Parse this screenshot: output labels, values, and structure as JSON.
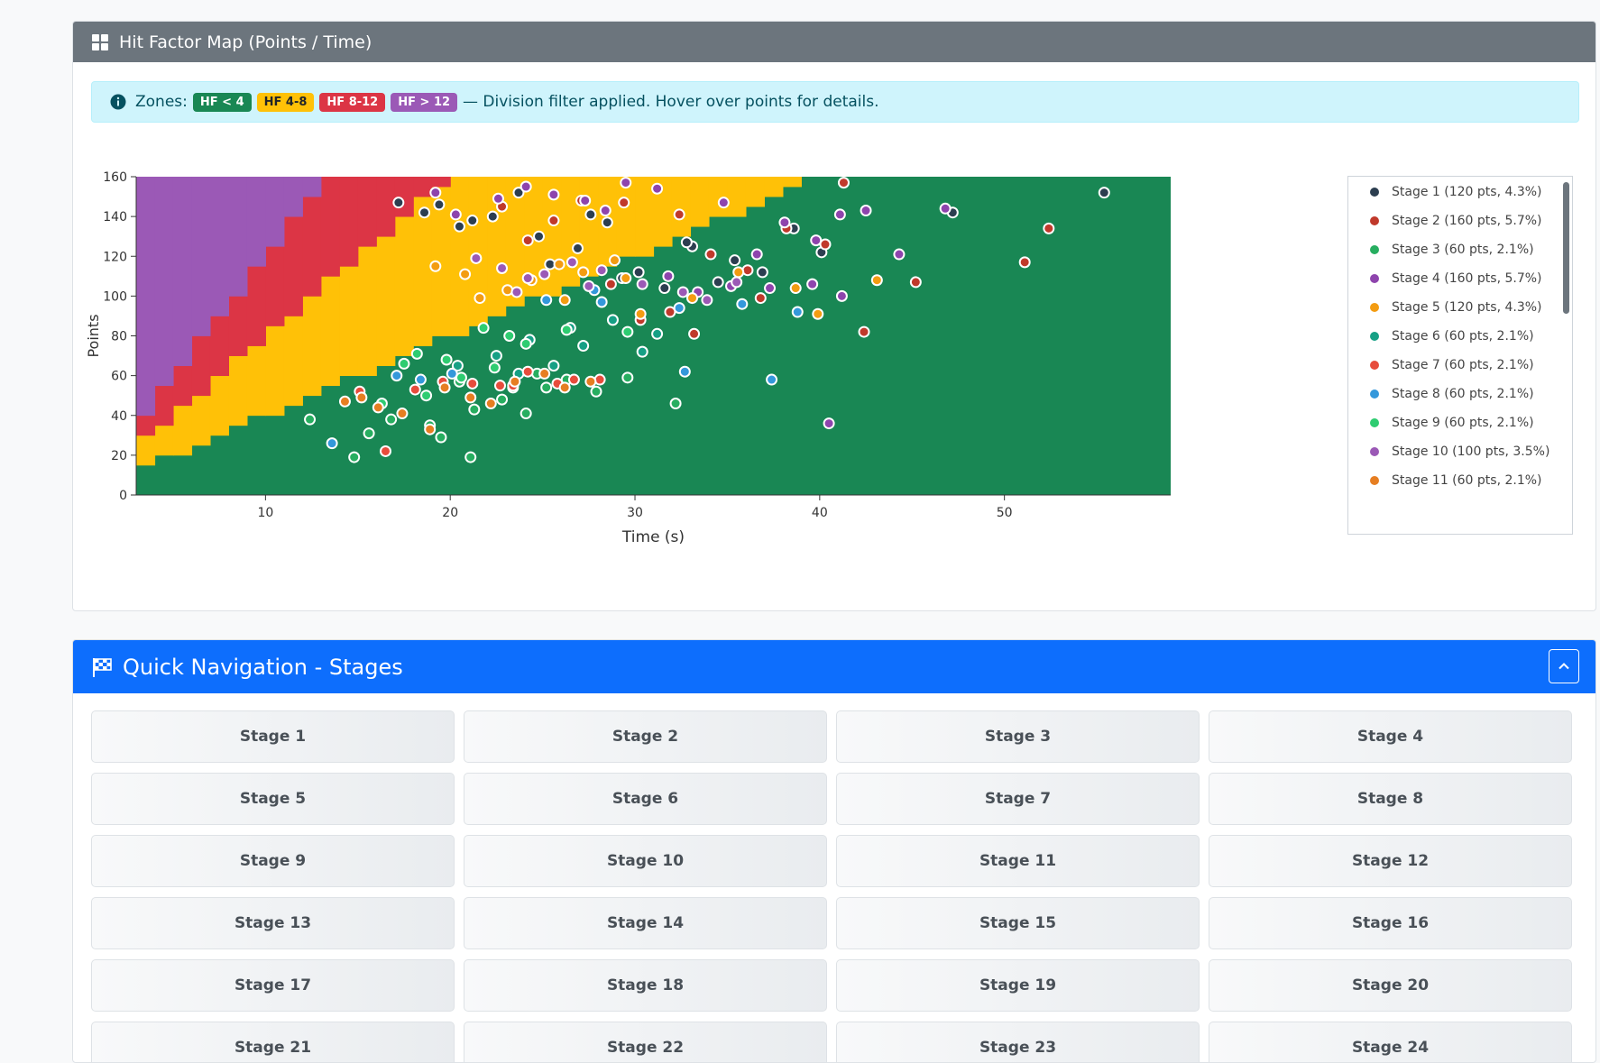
{
  "hf_card": {
    "title": "Hit Factor Map (Points / Time)",
    "alert": {
      "prefix": "Zones:",
      "badges": [
        {
          "label": "HF < 4",
          "bg": "#198754",
          "fg": "#ffffff"
        },
        {
          "label": "HF 4-8",
          "bg": "#ffc107",
          "fg": "#212529"
        },
        {
          "label": "HF 8-12",
          "bg": "#dc3545",
          "fg": "#ffffff"
        },
        {
          "label": "HF > 12",
          "bg": "#9b59b6",
          "fg": "#ffffff"
        }
      ],
      "suffix": "— Division filter applied. Hover over points for details."
    }
  },
  "chart_data": {
    "type": "scatter",
    "title": "",
    "xlabel": "Time (s)",
    "ylabel": "Points",
    "xlim": [
      3,
      59
    ],
    "ylim": [
      0,
      160
    ],
    "xticks": [
      10,
      20,
      30,
      40,
      50
    ],
    "yticks": [
      0,
      20,
      40,
      60,
      80,
      100,
      120,
      140,
      160
    ],
    "grid": false,
    "legend_position": "right",
    "zones": [
      {
        "label": "HF < 4",
        "min": 0,
        "max": 4,
        "color": "#198754"
      },
      {
        "label": "HF 4-8",
        "min": 4,
        "max": 8,
        "color": "#ffc107"
      },
      {
        "label": "HF 8-12",
        "min": 8,
        "max": 12,
        "color": "#dc3545"
      },
      {
        "label": "HF > 12",
        "min": 12,
        "max": 999,
        "color": "#9b59b6"
      }
    ],
    "series": [
      {
        "name": "Stage 1 (120 pts, 4.3%)",
        "color": "#2c3e50",
        "points": [
          [
            17.2,
            147
          ],
          [
            18.6,
            142
          ],
          [
            20.5,
            135
          ],
          [
            22.3,
            140
          ],
          [
            24.8,
            130
          ],
          [
            26.9,
            124
          ],
          [
            28.5,
            137
          ],
          [
            30.2,
            112
          ],
          [
            33.1,
            125
          ],
          [
            35.4,
            118
          ],
          [
            38.6,
            134
          ],
          [
            40.1,
            122
          ],
          [
            47.2,
            142
          ],
          [
            55.4,
            152
          ],
          [
            36.9,
            112
          ],
          [
            31.6,
            104
          ],
          [
            29.3,
            109
          ],
          [
            25.4,
            116
          ],
          [
            19.4,
            146
          ],
          [
            21.2,
            138
          ],
          [
            23.7,
            152
          ],
          [
            27.6,
            141
          ],
          [
            32.8,
            127
          ],
          [
            34.5,
            107
          ]
        ]
      },
      {
        "name": "Stage 2 (160 pts, 5.7%)",
        "color": "#c0392b",
        "points": [
          [
            38.2,
            134
          ],
          [
            41.3,
            157
          ],
          [
            42.4,
            82
          ],
          [
            52.4,
            134
          ],
          [
            51.1,
            117
          ],
          [
            45.2,
            107
          ],
          [
            36.8,
            99
          ],
          [
            33.2,
            81
          ],
          [
            31.9,
            92
          ],
          [
            30.3,
            88
          ],
          [
            28.7,
            106
          ],
          [
            27.1,
            148
          ],
          [
            25.6,
            138
          ],
          [
            24.2,
            128
          ],
          [
            22.8,
            145
          ],
          [
            29.4,
            147
          ],
          [
            32.4,
            141
          ],
          [
            34.1,
            121
          ],
          [
            36.1,
            113
          ],
          [
            40.3,
            126
          ]
        ]
      },
      {
        "name": "Stage 3 (60 pts, 2.1%)",
        "color": "#27ae60",
        "points": [
          [
            20.5,
            57
          ],
          [
            21.3,
            43
          ],
          [
            22.8,
            48
          ],
          [
            24.1,
            41
          ],
          [
            25.2,
            54
          ],
          [
            26.3,
            58
          ],
          [
            27.9,
            52
          ],
          [
            29.6,
            59
          ],
          [
            32.2,
            46
          ],
          [
            21.1,
            19
          ],
          [
            14.8,
            19
          ],
          [
            12.4,
            38
          ],
          [
            15.6,
            31
          ],
          [
            16.8,
            38
          ],
          [
            18.9,
            35
          ],
          [
            19.5,
            29
          ],
          [
            23.4,
            54
          ],
          [
            24.7,
            61
          ]
        ]
      },
      {
        "name": "Stage 4 (160 pts, 5.7%)",
        "color": "#8e44ad",
        "points": [
          [
            19.2,
            152
          ],
          [
            20.3,
            141
          ],
          [
            22.6,
            149
          ],
          [
            24.1,
            155
          ],
          [
            25.6,
            151
          ],
          [
            27.3,
            148
          ],
          [
            28.4,
            143
          ],
          [
            29.5,
            157
          ],
          [
            31.2,
            154
          ],
          [
            34.8,
            147
          ],
          [
            36.6,
            121
          ],
          [
            38.1,
            137
          ],
          [
            39.8,
            128
          ],
          [
            41.1,
            141
          ],
          [
            42.5,
            143
          ],
          [
            44.3,
            121
          ],
          [
            46.8,
            144
          ],
          [
            40.5,
            36
          ],
          [
            41.2,
            100
          ],
          [
            39.6,
            106
          ],
          [
            37.3,
            104
          ],
          [
            35.2,
            105
          ],
          [
            33.4,
            102
          ],
          [
            31.8,
            110
          ]
        ]
      },
      {
        "name": "Stage 5 (120 pts, 4.3%)",
        "color": "#f39c12",
        "points": [
          [
            35.6,
            112
          ],
          [
            38.7,
            104
          ],
          [
            39.9,
            91
          ],
          [
            43.1,
            108
          ],
          [
            30.3,
            91
          ],
          [
            28.9,
            118
          ],
          [
            27.2,
            112
          ],
          [
            25.9,
            116
          ],
          [
            24.4,
            108
          ],
          [
            23.1,
            103
          ],
          [
            21.6,
            99
          ],
          [
            19.2,
            115
          ],
          [
            20.8,
            111
          ],
          [
            33.1,
            99
          ],
          [
            29.5,
            109
          ],
          [
            26.2,
            98
          ]
        ]
      },
      {
        "name": "Stage 6 (60 pts, 2.1%)",
        "color": "#16a085",
        "points": [
          [
            24.3,
            78
          ],
          [
            26.5,
            84
          ],
          [
            28.8,
            88
          ],
          [
            31.2,
            81
          ],
          [
            25.6,
            65
          ],
          [
            22.5,
            70
          ],
          [
            20.4,
            65
          ],
          [
            30.4,
            72
          ],
          [
            27.2,
            75
          ],
          [
            23.7,
            61
          ]
        ]
      },
      {
        "name": "Stage 7 (60 pts, 2.1%)",
        "color": "#e74c3c",
        "points": [
          [
            21.2,
            56
          ],
          [
            22.7,
            55
          ],
          [
            23.4,
            55
          ],
          [
            25.8,
            56
          ],
          [
            28.1,
            58
          ],
          [
            19.6,
            57
          ],
          [
            18.1,
            53
          ],
          [
            16.5,
            22
          ],
          [
            15.1,
            52
          ],
          [
            24.2,
            62
          ],
          [
            26.7,
            58
          ]
        ]
      },
      {
        "name": "Stage 8 (60 pts, 2.1%)",
        "color": "#3498db",
        "points": [
          [
            32.7,
            62
          ],
          [
            37.4,
            58
          ],
          [
            38.8,
            92
          ],
          [
            13.6,
            26
          ],
          [
            20.1,
            61
          ],
          [
            18.4,
            58
          ],
          [
            17.1,
            60
          ],
          [
            25.2,
            98
          ],
          [
            28.2,
            97
          ],
          [
            32.4,
            94
          ],
          [
            35.8,
            96
          ],
          [
            27.8,
            103
          ]
        ]
      },
      {
        "name": "Stage 9 (60 pts, 2.1%)",
        "color": "#2ecc71",
        "points": [
          [
            21.8,
            84
          ],
          [
            23.2,
            80
          ],
          [
            24.1,
            76
          ],
          [
            26.3,
            83
          ],
          [
            29.6,
            82
          ],
          [
            22.4,
            64
          ],
          [
            19.8,
            68
          ],
          [
            18.2,
            71
          ],
          [
            17.5,
            66
          ],
          [
            20.6,
            59
          ],
          [
            16.3,
            46
          ],
          [
            18.7,
            50
          ]
        ]
      },
      {
        "name": "Stage 10 (100 pts, 3.5%)",
        "color": "#9b59b6",
        "points": [
          [
            21.4,
            119
          ],
          [
            22.8,
            114
          ],
          [
            24.2,
            109
          ],
          [
            26.6,
            117
          ],
          [
            28.2,
            113
          ],
          [
            30.4,
            106
          ],
          [
            32.6,
            102
          ],
          [
            33.9,
            98
          ],
          [
            35.5,
            107
          ],
          [
            27.5,
            105
          ],
          [
            25.1,
            111
          ],
          [
            23.6,
            102
          ]
        ]
      },
      {
        "name": "Stage 11 (60 pts, 2.1%)",
        "color": "#e67e22",
        "points": [
          [
            18.9,
            33
          ],
          [
            17.4,
            41
          ],
          [
            16.1,
            44
          ],
          [
            15.2,
            49
          ],
          [
            14.3,
            47
          ],
          [
            19.7,
            54
          ],
          [
            21.1,
            49
          ],
          [
            23.5,
            57
          ],
          [
            26.2,
            54
          ],
          [
            22.2,
            46
          ],
          [
            25.1,
            61
          ],
          [
            27.6,
            57
          ]
        ]
      }
    ]
  },
  "nav_card": {
    "title": "Quick Navigation - Stages",
    "stages": [
      "Stage 1",
      "Stage 2",
      "Stage 3",
      "Stage 4",
      "Stage 5",
      "Stage 6",
      "Stage 7",
      "Stage 8",
      "Stage 9",
      "Stage 10",
      "Stage 11",
      "Stage 12",
      "Stage 13",
      "Stage 14",
      "Stage 15",
      "Stage 16",
      "Stage 17",
      "Stage 18",
      "Stage 19",
      "Stage 20",
      "Stage 21",
      "Stage 22",
      "Stage 23",
      "Stage 24"
    ]
  }
}
